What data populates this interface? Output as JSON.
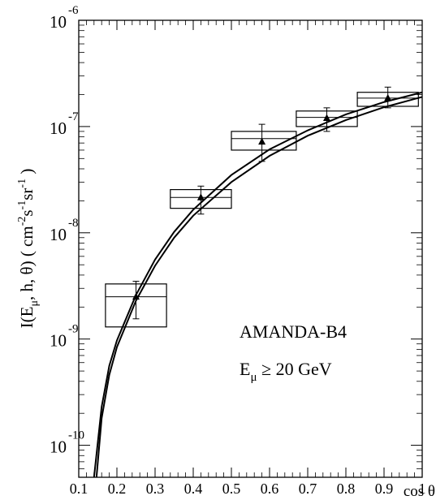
{
  "chart_data": {
    "type": "scatter",
    "y_scale": "log",
    "xlim": [
      0.1,
      1.0
    ],
    "ylim": [
      5e-11,
      1e-06
    ],
    "x_ticks": [
      {
        "v": 0.1,
        "label": "0.1"
      },
      {
        "v": 0.2,
        "label": "0.2"
      },
      {
        "v": 0.3,
        "label": "0.3"
      },
      {
        "v": 0.4,
        "label": "0.4"
      },
      {
        "v": 0.5,
        "label": "0.5"
      },
      {
        "v": 0.6,
        "label": "0.6"
      },
      {
        "v": 0.7,
        "label": "0.7"
      },
      {
        "v": 0.8,
        "label": "0.8"
      },
      {
        "v": 0.9,
        "label": "0.9"
      },
      {
        "v": 1.0,
        "label": "1"
      }
    ],
    "y_ticks": [
      {
        "v": 1e-06,
        "base": "10",
        "exp": "-6"
      },
      {
        "v": 1e-07,
        "base": "10",
        "exp": "-7"
      },
      {
        "v": 1e-08,
        "base": "10",
        "exp": "-8"
      },
      {
        "v": 1e-09,
        "base": "10",
        "exp": "-9"
      },
      {
        "v": 1e-10,
        "base": "10",
        "exp": "-10"
      }
    ],
    "xlabel": "cos θ",
    "ylabel": "I(E_μ, h, θ) ( cm^-2 s^-1 sr^-1 )",
    "annotations": [
      "AMANDA-B4",
      "E_μ ≥ 20 GeV"
    ],
    "points": [
      {
        "x": 0.25,
        "y": 2.5e-09,
        "y_err_low": 1.55e-09,
        "y_err_high": 3.5e-09,
        "box_x": [
          0.17,
          0.33
        ],
        "box_y": [
          1.3e-09,
          3.3e-09
        ],
        "box_mid": 2.5e-09
      },
      {
        "x": 0.42,
        "y": 2.15e-08,
        "y_err_low": 1.5e-08,
        "y_err_high": 2.75e-08,
        "box_x": [
          0.34,
          0.5
        ],
        "box_y": [
          1.7e-08,
          2.55e-08
        ],
        "box_mid": 2.15e-08
      },
      {
        "x": 0.58,
        "y": 7.2e-08,
        "y_err_low": 4.7e-08,
        "y_err_high": 1.05e-07,
        "box_x": [
          0.5,
          0.67
        ],
        "box_y": [
          6e-08,
          9e-08
        ],
        "box_mid": 7.7e-08
      },
      {
        "x": 0.75,
        "y": 1.2e-07,
        "y_err_low": 9e-08,
        "y_err_high": 1.5e-07,
        "box_x": [
          0.67,
          0.83
        ],
        "box_y": [
          1e-07,
          1.4e-07
        ],
        "box_mid": 1.22e-07
      },
      {
        "x": 0.91,
        "y": 1.85e-07,
        "y_err_low": 1.5e-07,
        "y_err_high": 2.35e-07,
        "box_x": [
          0.83,
          0.99
        ],
        "box_y": [
          1.55e-07,
          2.1e-07
        ],
        "box_mid": 1.85e-07
      }
    ],
    "curves": [
      {
        "points": [
          [
            0.14,
            5e-11
          ],
          [
            0.16,
            2.3e-10
          ],
          [
            0.18,
            5.6e-10
          ],
          [
            0.2,
            9.7e-10
          ],
          [
            0.25,
            2.6e-09
          ],
          [
            0.3,
            5.6e-09
          ],
          [
            0.35,
            1.02e-08
          ],
          [
            0.4,
            1.65e-08
          ],
          [
            0.5,
            3.5e-08
          ],
          [
            0.6,
            6.1e-08
          ],
          [
            0.7,
            9.2e-08
          ],
          [
            0.8,
            1.3e-07
          ],
          [
            0.9,
            1.7e-07
          ],
          [
            1.0,
            2.1e-07
          ]
        ]
      },
      {
        "points": [
          [
            0.1465,
            5e-11
          ],
          [
            0.16,
            1.8e-10
          ],
          [
            0.18,
            4.6e-10
          ],
          [
            0.2,
            8.4e-10
          ],
          [
            0.25,
            2.3e-09
          ],
          [
            0.3,
            4.9e-09
          ],
          [
            0.35,
            9e-09
          ],
          [
            0.4,
            1.45e-08
          ],
          [
            0.5,
            3e-08
          ],
          [
            0.6,
            5.3e-08
          ],
          [
            0.7,
            8.2e-08
          ],
          [
            0.8,
            1.15e-07
          ],
          [
            0.9,
            1.52e-07
          ],
          [
            1.0,
            1.9e-07
          ]
        ]
      }
    ]
  }
}
